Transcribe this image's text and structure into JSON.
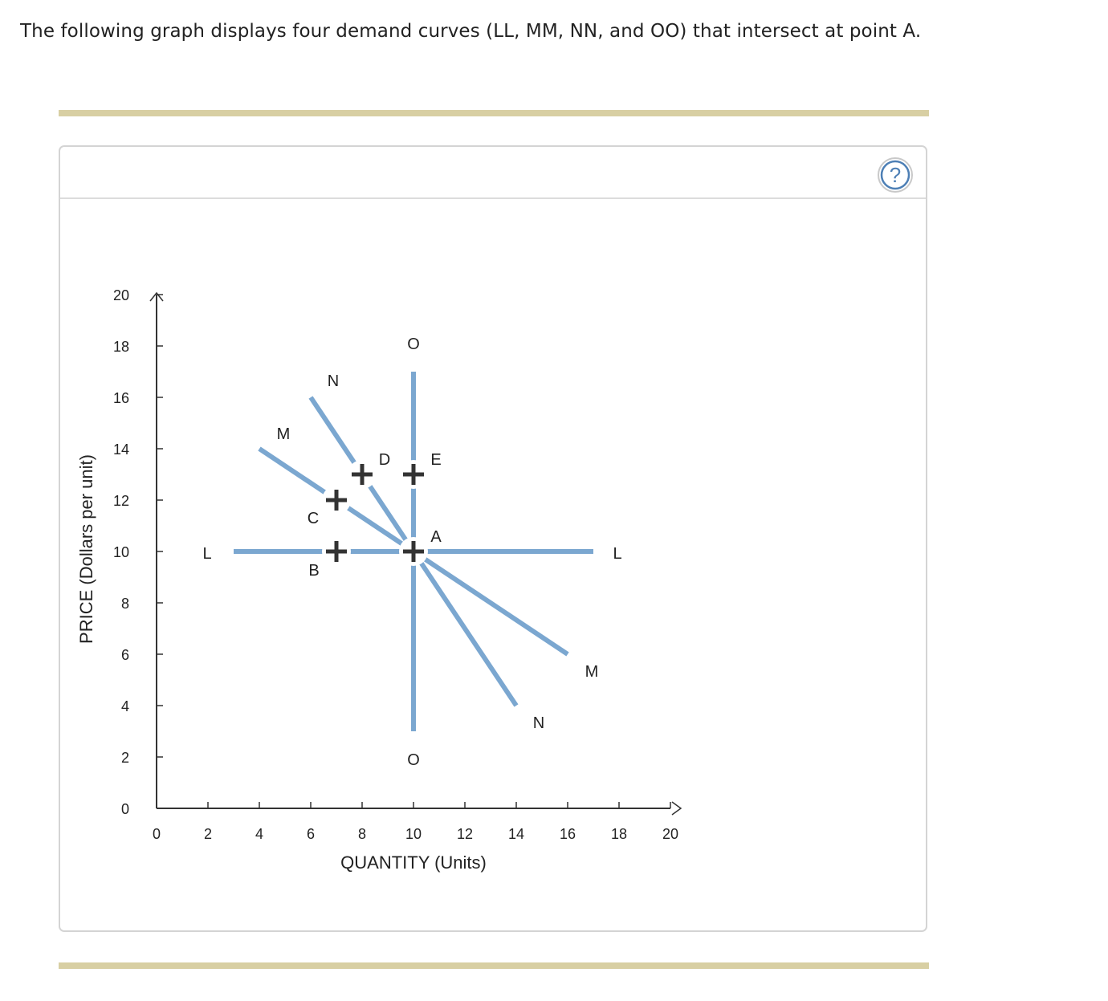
{
  "intro_text": "The following graph displays four demand curves (LL, MM, NN, and OO) that intersect at point A.",
  "help_button": {
    "icon": "question-icon",
    "glyph": "?"
  },
  "colors": {
    "curve": "#7ba7d0",
    "axis": "#333333",
    "rule": "#d8cfa3",
    "help": "#4d7fb5"
  },
  "chart_data": {
    "type": "line",
    "xlabel": "QUANTITY (Units)",
    "ylabel": "PRICE (Dollars per unit)",
    "xlim": [
      0,
      20
    ],
    "ylim": [
      0,
      20
    ],
    "xticks": [
      "0",
      "2",
      "4",
      "6",
      "8",
      "10",
      "12",
      "14",
      "16",
      "18",
      "20"
    ],
    "yticks": [
      "0",
      "2",
      "4",
      "6",
      "8",
      "10",
      "12",
      "14",
      "16",
      "18",
      "20"
    ],
    "series": [
      {
        "name": "L",
        "points": [
          [
            3,
            10
          ],
          [
            17,
            10
          ]
        ],
        "labels": [
          "L",
          "L"
        ]
      },
      {
        "name": "M",
        "points": [
          [
            4,
            14
          ],
          [
            16,
            6
          ]
        ],
        "labels": [
          "M",
          "M"
        ]
      },
      {
        "name": "N",
        "points": [
          [
            6,
            16
          ],
          [
            14,
            4
          ]
        ],
        "labels": [
          "N",
          "N"
        ]
      },
      {
        "name": "O",
        "points": [
          [
            10,
            17
          ],
          [
            10,
            3
          ]
        ],
        "labels": [
          "O",
          "O"
        ]
      }
    ],
    "points": [
      {
        "label": "A",
        "x": 10,
        "y": 10
      },
      {
        "label": "B",
        "x": 7,
        "y": 10
      },
      {
        "label": "C",
        "x": 7,
        "y": 12
      },
      {
        "label": "D",
        "x": 8,
        "y": 13
      },
      {
        "label": "E",
        "x": 10,
        "y": 13
      }
    ]
  }
}
